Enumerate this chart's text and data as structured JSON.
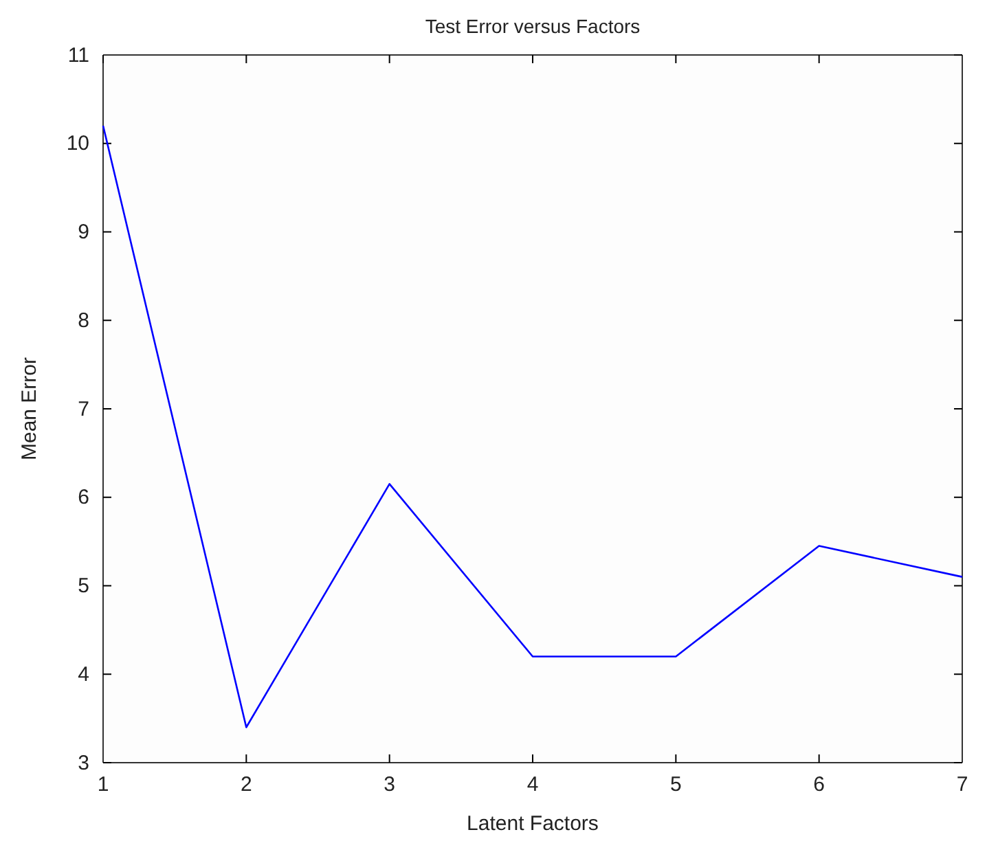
{
  "chart_data": {
    "type": "line",
    "title": "Test Error versus Factors",
    "xlabel": "Latent Factors",
    "ylabel": "Mean Error",
    "x": [
      1,
      2,
      3,
      4,
      5,
      6,
      7
    ],
    "series": [
      {
        "color": "#0000ff",
        "values": [
          10.2,
          3.4,
          6.15,
          4.2,
          4.2,
          5.45,
          5.1
        ]
      }
    ],
    "xlim": [
      1,
      7
    ],
    "xticks": [
      1,
      2,
      3,
      4,
      5,
      6,
      7
    ],
    "ylim": [
      3,
      11
    ],
    "yticks": [
      3,
      4,
      5,
      6,
      7,
      8,
      9,
      10,
      11
    ],
    "grid": false
  }
}
